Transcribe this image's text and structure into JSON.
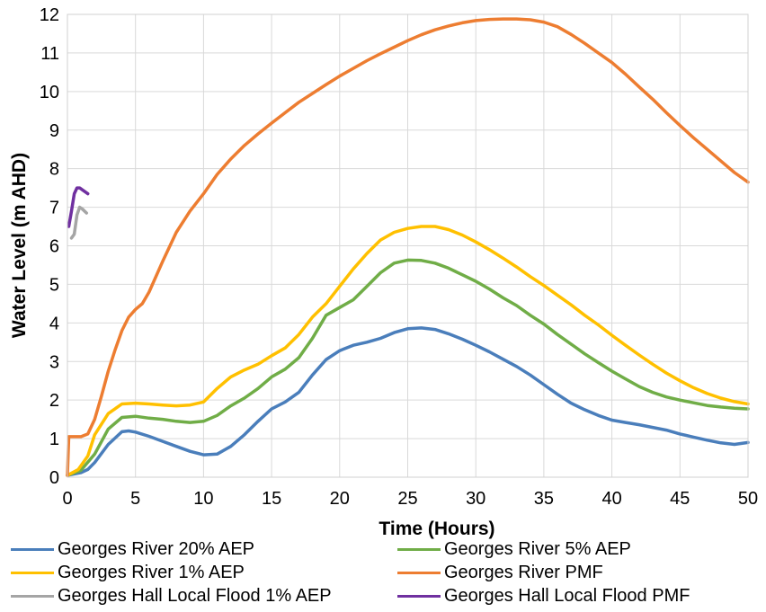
{
  "chart_data": {
    "type": "line",
    "title": "",
    "xlabel": "Time (Hours)",
    "ylabel": "Water Level (m AHD)",
    "xlim": [
      0,
      50
    ],
    "ylim": [
      0,
      12
    ],
    "xticks": [
      "0",
      "5",
      "10",
      "15",
      "20",
      "25",
      "30",
      "35",
      "40",
      "45",
      "50"
    ],
    "yticks": [
      "0",
      "1",
      "2",
      "3",
      "4",
      "5",
      "6",
      "7",
      "8",
      "9",
      "10",
      "11",
      "12"
    ],
    "grid": true,
    "legend_position": "bottom",
    "series": [
      {
        "name": "Georges River 20% AEP",
        "color": "#4A7EBB",
        "points": [
          [
            0,
            0.05
          ],
          [
            1,
            0.12
          ],
          [
            1.5,
            0.2
          ],
          [
            2,
            0.38
          ],
          [
            3,
            0.85
          ],
          [
            4,
            1.18
          ],
          [
            4.5,
            1.2
          ],
          [
            5,
            1.17
          ],
          [
            6,
            1.06
          ],
          [
            7,
            0.93
          ],
          [
            8,
            0.8
          ],
          [
            9,
            0.67
          ],
          [
            10,
            0.58
          ],
          [
            11,
            0.6
          ],
          [
            12,
            0.8
          ],
          [
            13,
            1.1
          ],
          [
            14,
            1.45
          ],
          [
            15,
            1.77
          ],
          [
            16,
            1.95
          ],
          [
            17,
            2.2
          ],
          [
            18,
            2.65
          ],
          [
            19,
            3.05
          ],
          [
            20,
            3.28
          ],
          [
            21,
            3.42
          ],
          [
            22,
            3.5
          ],
          [
            23,
            3.6
          ],
          [
            24,
            3.75
          ],
          [
            25,
            3.85
          ],
          [
            26,
            3.87
          ],
          [
            27,
            3.83
          ],
          [
            28,
            3.72
          ],
          [
            29,
            3.58
          ],
          [
            30,
            3.42
          ],
          [
            31,
            3.25
          ],
          [
            32,
            3.06
          ],
          [
            33,
            2.87
          ],
          [
            34,
            2.65
          ],
          [
            35,
            2.4
          ],
          [
            36,
            2.15
          ],
          [
            37,
            1.92
          ],
          [
            38,
            1.75
          ],
          [
            39,
            1.6
          ],
          [
            40,
            1.48
          ],
          [
            41,
            1.42
          ],
          [
            42,
            1.36
          ],
          [
            43,
            1.29
          ],
          [
            44,
            1.22
          ],
          [
            45,
            1.12
          ],
          [
            46,
            1.04
          ],
          [
            47,
            0.96
          ],
          [
            48,
            0.89
          ],
          [
            49,
            0.85
          ],
          [
            50,
            0.9
          ]
        ]
      },
      {
        "name": "Georges River 5% AEP",
        "color": "#70AD47",
        "points": [
          [
            0,
            0.05
          ],
          [
            1,
            0.18
          ],
          [
            2,
            0.6
          ],
          [
            3,
            1.25
          ],
          [
            4,
            1.55
          ],
          [
            5,
            1.58
          ],
          [
            6,
            1.53
          ],
          [
            7,
            1.5
          ],
          [
            8,
            1.45
          ],
          [
            9,
            1.42
          ],
          [
            10,
            1.45
          ],
          [
            11,
            1.6
          ],
          [
            12,
            1.85
          ],
          [
            13,
            2.05
          ],
          [
            14,
            2.3
          ],
          [
            15,
            2.6
          ],
          [
            16,
            2.8
          ],
          [
            17,
            3.1
          ],
          [
            18,
            3.6
          ],
          [
            19,
            4.2
          ],
          [
            20,
            4.4
          ],
          [
            21,
            4.6
          ],
          [
            22,
            4.95
          ],
          [
            23,
            5.3
          ],
          [
            24,
            5.55
          ],
          [
            25,
            5.63
          ],
          [
            26,
            5.62
          ],
          [
            27,
            5.55
          ],
          [
            28,
            5.42
          ],
          [
            29,
            5.25
          ],
          [
            30,
            5.08
          ],
          [
            31,
            4.88
          ],
          [
            32,
            4.65
          ],
          [
            33,
            4.45
          ],
          [
            34,
            4.2
          ],
          [
            35,
            3.97
          ],
          [
            36,
            3.7
          ],
          [
            37,
            3.45
          ],
          [
            38,
            3.2
          ],
          [
            39,
            2.97
          ],
          [
            40,
            2.75
          ],
          [
            41,
            2.55
          ],
          [
            42,
            2.35
          ],
          [
            43,
            2.2
          ],
          [
            44,
            2.08
          ],
          [
            45,
            2
          ],
          [
            46,
            1.93
          ],
          [
            47,
            1.86
          ],
          [
            48,
            1.82
          ],
          [
            49,
            1.79
          ],
          [
            50,
            1.77
          ]
        ]
      },
      {
        "name": "Georges River 1% AEP",
        "color": "#FFC000",
        "points": [
          [
            0,
            0.05
          ],
          [
            0.8,
            0.2
          ],
          [
            1.5,
            0.55
          ],
          [
            2,
            1.1
          ],
          [
            3,
            1.65
          ],
          [
            4,
            1.9
          ],
          [
            5,
            1.92
          ],
          [
            6,
            1.9
          ],
          [
            7,
            1.87
          ],
          [
            8,
            1.85
          ],
          [
            9,
            1.87
          ],
          [
            10,
            1.95
          ],
          [
            11,
            2.3
          ],
          [
            12,
            2.6
          ],
          [
            13,
            2.78
          ],
          [
            14,
            2.93
          ],
          [
            15,
            3.15
          ],
          [
            16,
            3.35
          ],
          [
            17,
            3.7
          ],
          [
            18,
            4.15
          ],
          [
            19,
            4.5
          ],
          [
            20,
            4.95
          ],
          [
            21,
            5.4
          ],
          [
            22,
            5.8
          ],
          [
            23,
            6.15
          ],
          [
            24,
            6.35
          ],
          [
            25,
            6.45
          ],
          [
            26,
            6.5
          ],
          [
            27,
            6.5
          ],
          [
            28,
            6.42
          ],
          [
            29,
            6.28
          ],
          [
            30,
            6.1
          ],
          [
            31,
            5.9
          ],
          [
            32,
            5.68
          ],
          [
            33,
            5.45
          ],
          [
            34,
            5.2
          ],
          [
            35,
            4.97
          ],
          [
            36,
            4.72
          ],
          [
            37,
            4.47
          ],
          [
            38,
            4.2
          ],
          [
            39,
            3.95
          ],
          [
            40,
            3.68
          ],
          [
            41,
            3.42
          ],
          [
            42,
            3.17
          ],
          [
            43,
            2.93
          ],
          [
            44,
            2.7
          ],
          [
            45,
            2.5
          ],
          [
            46,
            2.32
          ],
          [
            47,
            2.17
          ],
          [
            48,
            2.05
          ],
          [
            49,
            1.96
          ],
          [
            50,
            1.9
          ]
        ]
      },
      {
        "name": "Georges River PMF",
        "color": "#ED7D31",
        "points": [
          [
            0,
            0.05
          ],
          [
            0.1,
            1.05
          ],
          [
            1,
            1.05
          ],
          [
            1.5,
            1.12
          ],
          [
            2,
            1.5
          ],
          [
            2.5,
            2.1
          ],
          [
            3,
            2.75
          ],
          [
            3.5,
            3.3
          ],
          [
            4,
            3.8
          ],
          [
            4.5,
            4.15
          ],
          [
            5,
            4.35
          ],
          [
            5.5,
            4.5
          ],
          [
            6,
            4.8
          ],
          [
            7,
            5.6
          ],
          [
            8,
            6.35
          ],
          [
            9,
            6.9
          ],
          [
            10,
            7.35
          ],
          [
            11,
            7.85
          ],
          [
            12,
            8.25
          ],
          [
            13,
            8.6
          ],
          [
            14,
            8.9
          ],
          [
            15,
            9.18
          ],
          [
            16,
            9.45
          ],
          [
            17,
            9.72
          ],
          [
            18,
            9.95
          ],
          [
            19,
            10.18
          ],
          [
            20,
            10.4
          ],
          [
            21,
            10.6
          ],
          [
            22,
            10.8
          ],
          [
            23,
            10.98
          ],
          [
            24,
            11.15
          ],
          [
            25,
            11.32
          ],
          [
            26,
            11.47
          ],
          [
            27,
            11.6
          ],
          [
            28,
            11.7
          ],
          [
            29,
            11.78
          ],
          [
            30,
            11.84
          ],
          [
            31,
            11.87
          ],
          [
            32,
            11.88
          ],
          [
            33,
            11.88
          ],
          [
            34,
            11.86
          ],
          [
            35,
            11.8
          ],
          [
            36,
            11.68
          ],
          [
            37,
            11.48
          ],
          [
            38,
            11.25
          ],
          [
            39,
            11
          ],
          [
            40,
            10.75
          ],
          [
            41,
            10.45
          ],
          [
            42,
            10.12
          ],
          [
            43,
            9.8
          ],
          [
            44,
            9.45
          ],
          [
            45,
            9.12
          ],
          [
            46,
            8.8
          ],
          [
            47,
            8.5
          ],
          [
            48,
            8.2
          ],
          [
            49,
            7.9
          ],
          [
            50,
            7.65
          ]
        ]
      },
      {
        "name": "Georges Hall Local Flood 1% AEP",
        "color": "#A5A5A5",
        "points": [
          [
            0.3,
            6.2
          ],
          [
            0.5,
            6.3
          ],
          [
            0.7,
            6.8
          ],
          [
            0.9,
            7.0
          ],
          [
            1.1,
            6.95
          ],
          [
            1.4,
            6.85
          ]
        ]
      },
      {
        "name": "Georges Hall Local Flood PMF",
        "color": "#7030A0",
        "points": [
          [
            0.1,
            6.5
          ],
          [
            0.3,
            6.9
          ],
          [
            0.5,
            7.35
          ],
          [
            0.7,
            7.5
          ],
          [
            0.9,
            7.5
          ],
          [
            1.1,
            7.45
          ],
          [
            1.5,
            7.35
          ]
        ]
      }
    ]
  }
}
